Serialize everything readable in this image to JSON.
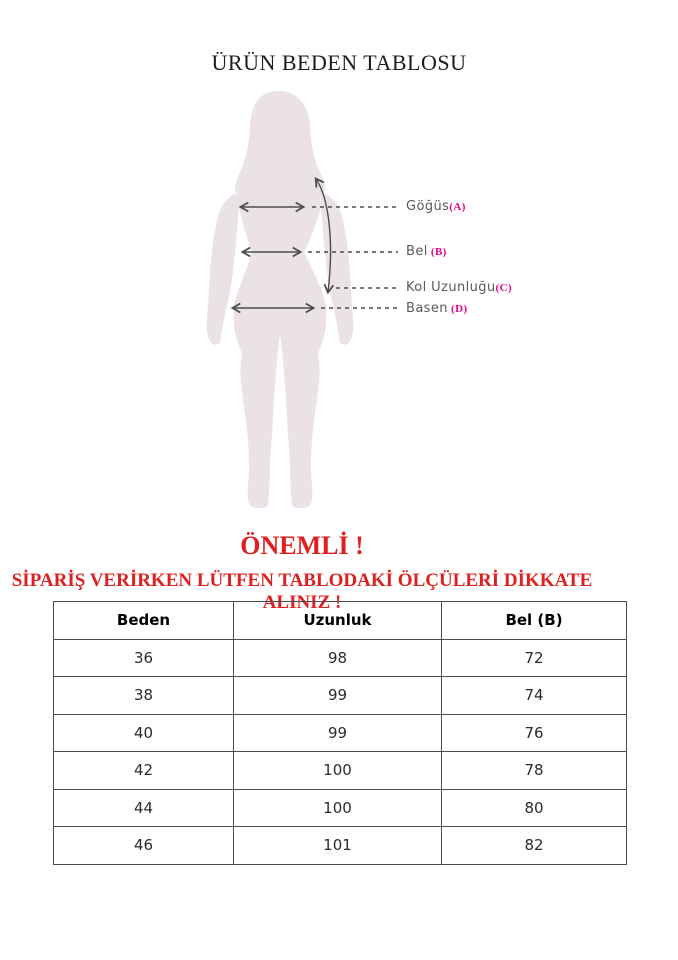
{
  "page": {
    "title": "ÜRÜN BEDEN TABLOSU"
  },
  "diagram": {
    "labels": [
      {
        "name": "Göğüs",
        "code": "(A)"
      },
      {
        "name": "Bel",
        "code": " (B)"
      },
      {
        "name": "Kol Uzunluğu",
        "code": "(C)"
      },
      {
        "name": "Basen",
        "code": " (D)"
      }
    ]
  },
  "warning": {
    "heading": "ÖNEMLİ !",
    "subheading": "SİPARİŞ VERİRKEN LÜTFEN TABLODAKİ ÖLÇÜLERİ DİKKATE ALINIZ !"
  },
  "size_table": {
    "headers": [
      "Beden",
      "Uzunluk",
      "Bel (B)"
    ],
    "rows": [
      [
        "36",
        "98",
        "72"
      ],
      [
        "38",
        "99",
        "74"
      ],
      [
        "40",
        "99",
        "76"
      ],
      [
        "42",
        "100",
        "78"
      ],
      [
        "44",
        "100",
        "80"
      ],
      [
        "46",
        "101",
        "82"
      ]
    ]
  },
  "theme": {
    "c-sil": "#eae2e3",
    "c-line": "#4d4d4f",
    "c-label": "#58595b",
    "c-pink": "#ec008c",
    "c-red": "#e02020",
    "c-border": "#4b4b4b"
  }
}
